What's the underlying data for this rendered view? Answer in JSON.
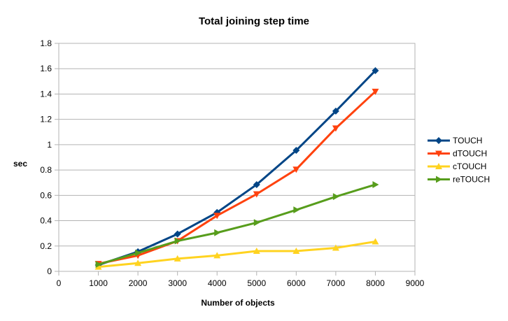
{
  "chart_data": {
    "type": "line",
    "title": "Total joining step time",
    "xlabel": "Number of objects",
    "ylabel": "sec",
    "xlim": [
      0,
      9000
    ],
    "ylim": [
      0,
      1.8
    ],
    "x_ticks": [
      "0",
      "1000",
      "2000",
      "3000",
      "4000",
      "5000",
      "6000",
      "7000",
      "8000",
      "9000"
    ],
    "y_ticks": [
      "0",
      "0.2",
      "0.4",
      "0.6",
      "0.8",
      "1",
      "1.2",
      "1.4",
      "1.6",
      "1.8"
    ],
    "grid": "horizontal",
    "legend_position": "right",
    "x": [
      1000,
      2000,
      3000,
      4000,
      5000,
      6000,
      7000,
      8000
    ],
    "series": [
      {
        "name": "TOUCH",
        "color": "#004586",
        "marker": "diamond",
        "values": [
          0.05,
          0.155,
          0.295,
          0.465,
          0.685,
          0.955,
          1.265,
          1.585
        ]
      },
      {
        "name": "dTOUCH",
        "color": "#ff420e",
        "marker": "triangle-down",
        "values": [
          0.06,
          0.125,
          0.24,
          0.44,
          0.61,
          0.805,
          1.13,
          1.42
        ]
      },
      {
        "name": "cTOUCH",
        "color": "#ffd320",
        "marker": "triangle-up",
        "values": [
          0.035,
          0.065,
          0.1,
          0.125,
          0.16,
          0.16,
          0.185,
          0.235
        ]
      },
      {
        "name": "reTOUCH",
        "color": "#579d1c",
        "marker": "triangle-right",
        "values": [
          0.055,
          0.145,
          0.24,
          0.305,
          0.385,
          0.485,
          0.59,
          0.685
        ]
      }
    ]
  }
}
